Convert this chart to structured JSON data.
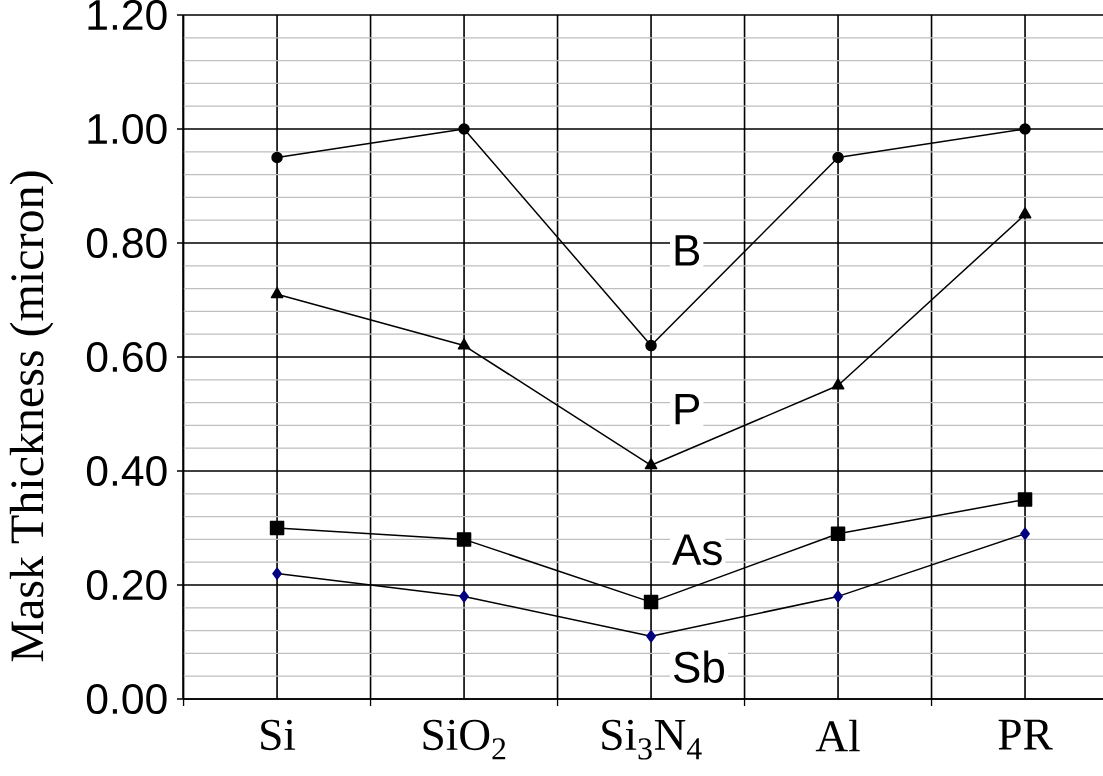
{
  "chart_data": {
    "type": "line",
    "ylabel": "Mask Thickness (micron)",
    "categories": [
      "Si",
      "SiO$_{2}$",
      "Si$_{3}$N$_{4}$",
      "Al",
      "PR"
    ],
    "series": [
      {
        "name": "B",
        "color": "#000000",
        "marker": "circle",
        "values": [
          0.95,
          1.0,
          0.62,
          0.95,
          1.0
        ]
      },
      {
        "name": "P",
        "color": "#000000",
        "marker": "triangle",
        "values": [
          0.71,
          0.62,
          0.41,
          0.55,
          0.85
        ]
      },
      {
        "name": "As",
        "color": "#000000",
        "marker": "square",
        "values": [
          0.3,
          0.28,
          0.17,
          0.29,
          0.35
        ]
      },
      {
        "name": "Sb",
        "color": "#000080",
        "marker": "diamond",
        "values": [
          0.22,
          0.18,
          0.11,
          0.18,
          0.29
        ]
      }
    ],
    "ylim": [
      0,
      1.2
    ],
    "yticks": [
      {
        "value": 0,
        "label": "0.00"
      },
      {
        "value": 0.2,
        "label": "0.20"
      },
      {
        "value": 0.4,
        "label": "0.40"
      },
      {
        "value": 0.6,
        "label": "0.60"
      },
      {
        "value": 0.8,
        "label": "0.80"
      },
      {
        "value": 1.0,
        "label": "1.00"
      },
      {
        "value": 1.2,
        "label": "1.20"
      }
    ],
    "grid": true,
    "line_style": "solid"
  }
}
